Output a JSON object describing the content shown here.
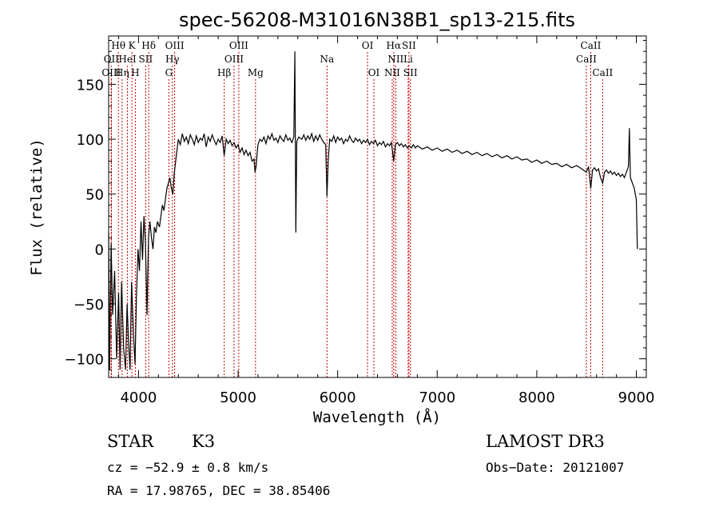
{
  "chart_data": {
    "type": "line",
    "title": "spec-56208-M31016N38B1_sp13-215.fits",
    "xlabel": "Wavelength (Å)",
    "ylabel": "Flux (relative)",
    "xlim": [
      3700,
      9100
    ],
    "ylim": [
      -117,
      194
    ],
    "xticks": [
      4000,
      5000,
      6000,
      7000,
      8000,
      9000
    ],
    "yticks": [
      -100,
      -50,
      0,
      50,
      100,
      150
    ],
    "xtick_labels": [
      "4000",
      "5000",
      "6000",
      "7000",
      "8000",
      "9000"
    ],
    "ytick_labels": [
      "−100",
      "−50",
      "0",
      "50",
      "100",
      "150"
    ],
    "series": [
      {
        "name": "spectrum",
        "points": [
          [
            3700,
            15
          ],
          [
            3710,
            -110
          ],
          [
            3725,
            5
          ],
          [
            3740,
            -60
          ],
          [
            3760,
            -20
          ],
          [
            3780,
            -100
          ],
          [
            3800,
            -40
          ],
          [
            3815,
            -110
          ],
          [
            3830,
            -30
          ],
          [
            3850,
            -90
          ],
          [
            3870,
            -110
          ],
          [
            3885,
            -50
          ],
          [
            3900,
            -85
          ],
          [
            3915,
            -110
          ],
          [
            3930,
            -30
          ],
          [
            3950,
            -80
          ],
          [
            3965,
            -105
          ],
          [
            3980,
            -40
          ],
          [
            3995,
            0
          ],
          [
            4010,
            -20
          ],
          [
            4025,
            25
          ],
          [
            4040,
            -10
          ],
          [
            4055,
            30
          ],
          [
            4070,
            5
          ],
          [
            4085,
            -60
          ],
          [
            4100,
            10
          ],
          [
            4115,
            25
          ],
          [
            4130,
            10
          ],
          [
            4145,
            0
          ],
          [
            4160,
            20
          ],
          [
            4175,
            15
          ],
          [
            4190,
            25
          ],
          [
            4210,
            20
          ],
          [
            4225,
            30
          ],
          [
            4240,
            40
          ],
          [
            4255,
            35
          ],
          [
            4270,
            45
          ],
          [
            4285,
            55
          ],
          [
            4300,
            60
          ],
          [
            4315,
            65
          ],
          [
            4330,
            55
          ],
          [
            4345,
            50
          ],
          [
            4360,
            70
          ],
          [
            4380,
            85
          ],
          [
            4400,
            100
          ],
          [
            4420,
            95
          ],
          [
            4440,
            105
          ],
          [
            4460,
            98
          ],
          [
            4480,
            102
          ],
          [
            4500,
            96
          ],
          [
            4520,
            104
          ],
          [
            4540,
            100
          ],
          [
            4560,
            95
          ],
          [
            4580,
            103
          ],
          [
            4600,
            97
          ],
          [
            4620,
            101
          ],
          [
            4640,
            99
          ],
          [
            4660,
            105
          ],
          [
            4680,
            93
          ],
          [
            4700,
            102
          ],
          [
            4720,
            98
          ],
          [
            4740,
            104
          ],
          [
            4760,
            99
          ],
          [
            4780,
            95
          ],
          [
            4800,
            100
          ],
          [
            4820,
            97
          ],
          [
            4840,
            103
          ],
          [
            4860,
            85
          ],
          [
            4880,
            100
          ],
          [
            4900,
            96
          ],
          [
            4920,
            99
          ],
          [
            4940,
            94
          ],
          [
            4960,
            97
          ],
          [
            4980,
            92
          ],
          [
            5000,
            95
          ],
          [
            5020,
            88
          ],
          [
            5040,
            92
          ],
          [
            5060,
            86
          ],
          [
            5080,
            90
          ],
          [
            5100,
            85
          ],
          [
            5120,
            88
          ],
          [
            5140,
            80
          ],
          [
            5160,
            82
          ],
          [
            5170,
            70
          ],
          [
            5180,
            75
          ],
          [
            5200,
            95
          ],
          [
            5220,
            100
          ],
          [
            5240,
            98
          ],
          [
            5260,
            102
          ],
          [
            5280,
            96
          ],
          [
            5300,
            103
          ],
          [
            5320,
            100
          ],
          [
            5340,
            105
          ],
          [
            5360,
            99
          ],
          [
            5380,
            101
          ],
          [
            5400,
            97
          ],
          [
            5420,
            103
          ],
          [
            5440,
            100
          ],
          [
            5460,
            98
          ],
          [
            5480,
            104
          ],
          [
            5500,
            99
          ],
          [
            5520,
            101
          ],
          [
            5540,
            97
          ],
          [
            5560,
            102
          ],
          [
            5570,
            180
          ],
          [
            5580,
            15
          ],
          [
            5590,
            98
          ],
          [
            5610,
            102
          ],
          [
            5640,
            100
          ],
          [
            5660,
            104
          ],
          [
            5680,
            99
          ],
          [
            5700,
            103
          ],
          [
            5720,
            100
          ],
          [
            5740,
            105
          ],
          [
            5760,
            98
          ],
          [
            5780,
            103
          ],
          [
            5800,
            99
          ],
          [
            5820,
            104
          ],
          [
            5840,
            100
          ],
          [
            5860,
            97
          ],
          [
            5880,
            95
          ],
          [
            5893,
            48
          ],
          [
            5905,
            80
          ],
          [
            5920,
            100
          ],
          [
            5940,
            98
          ],
          [
            5960,
            103
          ],
          [
            5980,
            97
          ],
          [
            6000,
            102
          ],
          [
            6020,
            99
          ],
          [
            6040,
            101
          ],
          [
            6060,
            96
          ],
          [
            6080,
            100
          ],
          [
            6100,
            98
          ],
          [
            6120,
            103
          ],
          [
            6140,
            99
          ],
          [
            6160,
            97
          ],
          [
            6180,
            101
          ],
          [
            6200,
            98
          ],
          [
            6220,
            100
          ],
          [
            6240,
            96
          ],
          [
            6260,
            99
          ],
          [
            6280,
            97
          ],
          [
            6300,
            100
          ],
          [
            6320,
            95
          ],
          [
            6340,
            98
          ],
          [
            6360,
            96
          ],
          [
            6380,
            99
          ],
          [
            6400,
            94
          ],
          [
            6420,
            97
          ],
          [
            6440,
            95
          ],
          [
            6460,
            98
          ],
          [
            6480,
            93
          ],
          [
            6500,
            96
          ],
          [
            6520,
            94
          ],
          [
            6540,
            97
          ],
          [
            6563,
            80
          ],
          [
            6580,
            95
          ],
          [
            6600,
            97
          ],
          [
            6620,
            94
          ],
          [
            6640,
            96
          ],
          [
            6660,
            93
          ],
          [
            6680,
            95
          ],
          [
            6700,
            92
          ],
          [
            6720,
            94
          ],
          [
            6740,
            92
          ],
          [
            6760,
            95
          ],
          [
            6780,
            92
          ],
          [
            6800,
            94
          ],
          [
            6850,
            91
          ],
          [
            6900,
            93
          ],
          [
            6950,
            90
          ],
          [
            7000,
            92
          ],
          [
            7050,
            89
          ],
          [
            7100,
            91
          ],
          [
            7150,
            88
          ],
          [
            7200,
            90
          ],
          [
            7250,
            87
          ],
          [
            7300,
            89
          ],
          [
            7350,
            86
          ],
          [
            7400,
            88
          ],
          [
            7450,
            85
          ],
          [
            7500,
            87
          ],
          [
            7550,
            84
          ],
          [
            7600,
            86
          ],
          [
            7650,
            83
          ],
          [
            7700,
            85
          ],
          [
            7750,
            82
          ],
          [
            7800,
            84
          ],
          [
            7850,
            81
          ],
          [
            7900,
            82
          ],
          [
            7950,
            79
          ],
          [
            8000,
            81
          ],
          [
            8050,
            78
          ],
          [
            8100,
            80
          ],
          [
            8150,
            77
          ],
          [
            8200,
            78
          ],
          [
            8250,
            75
          ],
          [
            8300,
            77
          ],
          [
            8350,
            74
          ],
          [
            8400,
            76
          ],
          [
            8450,
            73
          ],
          [
            8498,
            70
          ],
          [
            8520,
            75
          ],
          [
            8542,
            55
          ],
          [
            8560,
            72
          ],
          [
            8580,
            74
          ],
          [
            8600,
            71
          ],
          [
            8620,
            73
          ],
          [
            8640,
            65
          ],
          [
            8662,
            60
          ],
          [
            8680,
            70
          ],
          [
            8700,
            72
          ],
          [
            8720,
            69
          ],
          [
            8740,
            71
          ],
          [
            8760,
            68
          ],
          [
            8780,
            70
          ],
          [
            8800,
            67
          ],
          [
            8820,
            69
          ],
          [
            8840,
            66
          ],
          [
            8860,
            68
          ],
          [
            8880,
            65
          ],
          [
            8900,
            70
          ],
          [
            8920,
            75
          ],
          [
            8930,
            110
          ],
          [
            8940,
            65
          ],
          [
            8960,
            60
          ],
          [
            8980,
            55
          ],
          [
            9000,
            45
          ],
          [
            9010,
            0
          ]
        ]
      }
    ],
    "spectral_lines": [
      {
        "label": "Hθ",
        "x": 3798,
        "row": 1
      },
      {
        "label": "K",
        "x": 3934,
        "row": 1
      },
      {
        "label": "Hδ",
        "x": 4102,
        "row": 1
      },
      {
        "label": "OIII",
        "x": 4363,
        "row": 1
      },
      {
        "label": "OIII",
        "x": 5007,
        "row": 1
      },
      {
        "label": "OI",
        "x": 6300,
        "row": 1
      },
      {
        "label": "Hα",
        "x": 6563,
        "row": 1
      },
      {
        "label": "SII",
        "x": 6716,
        "row": 1
      },
      {
        "label": "CaII",
        "x": 8542,
        "row": 1
      },
      {
        "label": "OII",
        "x": 3727,
        "row": 2
      },
      {
        "label": "HeI",
        "x": 3889,
        "row": 2
      },
      {
        "label": "SII",
        "x": 4072,
        "row": 2
      },
      {
        "label": "Hγ",
        "x": 4340,
        "row": 2
      },
      {
        "label": "OIII",
        "x": 4959,
        "row": 2
      },
      {
        "label": "Na",
        "x": 5893,
        "row": 2
      },
      {
        "label": "NII",
        "x": 6583,
        "row": 2
      },
      {
        "label": "Li",
        "x": 6708,
        "row": 2
      },
      {
        "label": "CaII",
        "x": 8498,
        "row": 2
      },
      {
        "label": "OIII",
        "x": 3727,
        "row": 3
      },
      {
        "label": "Hη",
        "x": 3835,
        "row": 3
      },
      {
        "label": "H",
        "x": 3968,
        "row": 3
      },
      {
        "label": "G",
        "x": 4305,
        "row": 3
      },
      {
        "label": "Hβ",
        "x": 4861,
        "row": 3
      },
      {
        "label": "Mg",
        "x": 5175,
        "row": 3
      },
      {
        "label": "OI",
        "x": 6364,
        "row": 3
      },
      {
        "label": "NII",
        "x": 6548,
        "row": 3
      },
      {
        "label": "SII",
        "x": 6731,
        "row": 3
      },
      {
        "label": "CaII",
        "x": 8662,
        "row": 3
      }
    ],
    "grid": false,
    "line_color": "#000000",
    "marker_line_color": "#cc0000"
  },
  "info": {
    "object_class": "STAR",
    "subclass": "K3",
    "survey": "LAMOST DR3",
    "cz": "cz = −52.9 ± 0.8 km/s",
    "obs_date": "Obs−Date: 20121007",
    "coords": "RA =  17.98765, DEC =  38.85406"
  }
}
